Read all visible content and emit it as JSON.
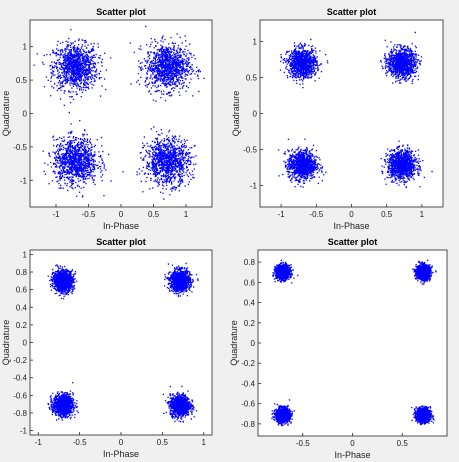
{
  "figure": {
    "background": "#f0f0f0",
    "plot_background": "#ffffff",
    "point_color": "#0000ff"
  },
  "chart_data": [
    {
      "type": "scatter",
      "title": "Scatter plot",
      "xlabel": "In-Phase",
      "ylabel": "Quadrature",
      "xlim": [
        -1.4,
        1.4
      ],
      "ylim": [
        -1.4,
        1.4
      ],
      "xticks": [
        -1,
        -0.5,
        0,
        0.5,
        1
      ],
      "xtick_labels": [
        "-1",
        "-0.5",
        "0",
        "0.5",
        "1"
      ],
      "yticks": [
        -1,
        -0.5,
        0,
        0.5,
        1
      ],
      "ytick_labels": [
        "-1",
        "-0.5",
        "0",
        "0.5",
        "1"
      ],
      "grid": false,
      "cluster_centers": [
        [
          -0.707,
          0.707
        ],
        [
          0.707,
          0.707
        ],
        [
          -0.707,
          -0.707
        ],
        [
          0.707,
          -0.707
        ]
      ],
      "cluster_spread": 0.17
    },
    {
      "type": "scatter",
      "title": "Scatter plot",
      "xlabel": "In-Phase",
      "ylabel": "Quadrature",
      "xlim": [
        -1.3,
        1.3
      ],
      "ylim": [
        -1.3,
        1.3
      ],
      "xticks": [
        -1,
        -0.5,
        0,
        0.5,
        1
      ],
      "xtick_labels": [
        "-1",
        "-0.5",
        "0",
        "0.5",
        "1"
      ],
      "yticks": [
        -1,
        -0.5,
        0,
        0.5,
        1
      ],
      "ytick_labels": [
        "-1",
        "-0.5",
        "0",
        "0.5",
        "1"
      ],
      "grid": false,
      "cluster_centers": [
        [
          -0.707,
          0.707
        ],
        [
          0.707,
          0.707
        ],
        [
          -0.707,
          -0.707
        ],
        [
          0.707,
          -0.707
        ]
      ],
      "cluster_spread": 0.1
    },
    {
      "type": "scatter",
      "title": "Scatter plot",
      "xlabel": "In-Phase",
      "ylabel": "Quadrature",
      "xlim": [
        -1.1,
        1.1
      ],
      "ylim": [
        -1.05,
        1.05
      ],
      "xticks": [
        -1,
        -0.5,
        0,
        0.5,
        1
      ],
      "xtick_labels": [
        "-1",
        "-0.5",
        "0",
        "0.5",
        "1"
      ],
      "yticks": [
        -1,
        -0.8,
        -0.6,
        -0.4,
        -0.2,
        0,
        0.2,
        0.4,
        0.6,
        0.8,
        1
      ],
      "ytick_labels": [
        "-1",
        "-0.8",
        "-0.6",
        "-0.4",
        "-0.2",
        "0",
        "0.2",
        "0.4",
        "0.6",
        "0.8",
        "1"
      ],
      "grid": false,
      "cluster_centers": [
        [
          -0.707,
          0.707
        ],
        [
          0.707,
          0.707
        ],
        [
          -0.707,
          -0.707
        ],
        [
          0.707,
          -0.707
        ]
      ],
      "cluster_spread": 0.06
    },
    {
      "type": "scatter",
      "title": "Scatter plot",
      "xlabel": "In-Phase",
      "ylabel": "Quadrature",
      "xlim": [
        -0.95,
        0.95
      ],
      "ylim": [
        -0.92,
        0.92
      ],
      "xticks": [
        -0.5,
        0,
        0.5
      ],
      "xtick_labels": [
        "-0.5",
        "0",
        "0.5"
      ],
      "yticks": [
        -0.8,
        -0.6,
        -0.4,
        -0.2,
        0,
        0.2,
        0.4,
        0.6,
        0.8
      ],
      "ytick_labels": [
        "-0.8",
        "-0.6",
        "-0.4",
        "-0.2",
        "0",
        "0.2",
        "0.4",
        "0.6",
        "0.8"
      ],
      "grid": false,
      "cluster_centers": [
        [
          -0.707,
          0.707
        ],
        [
          0.707,
          0.707
        ],
        [
          -0.707,
          -0.707
        ],
        [
          0.707,
          -0.707
        ]
      ],
      "cluster_spread": 0.035
    }
  ]
}
